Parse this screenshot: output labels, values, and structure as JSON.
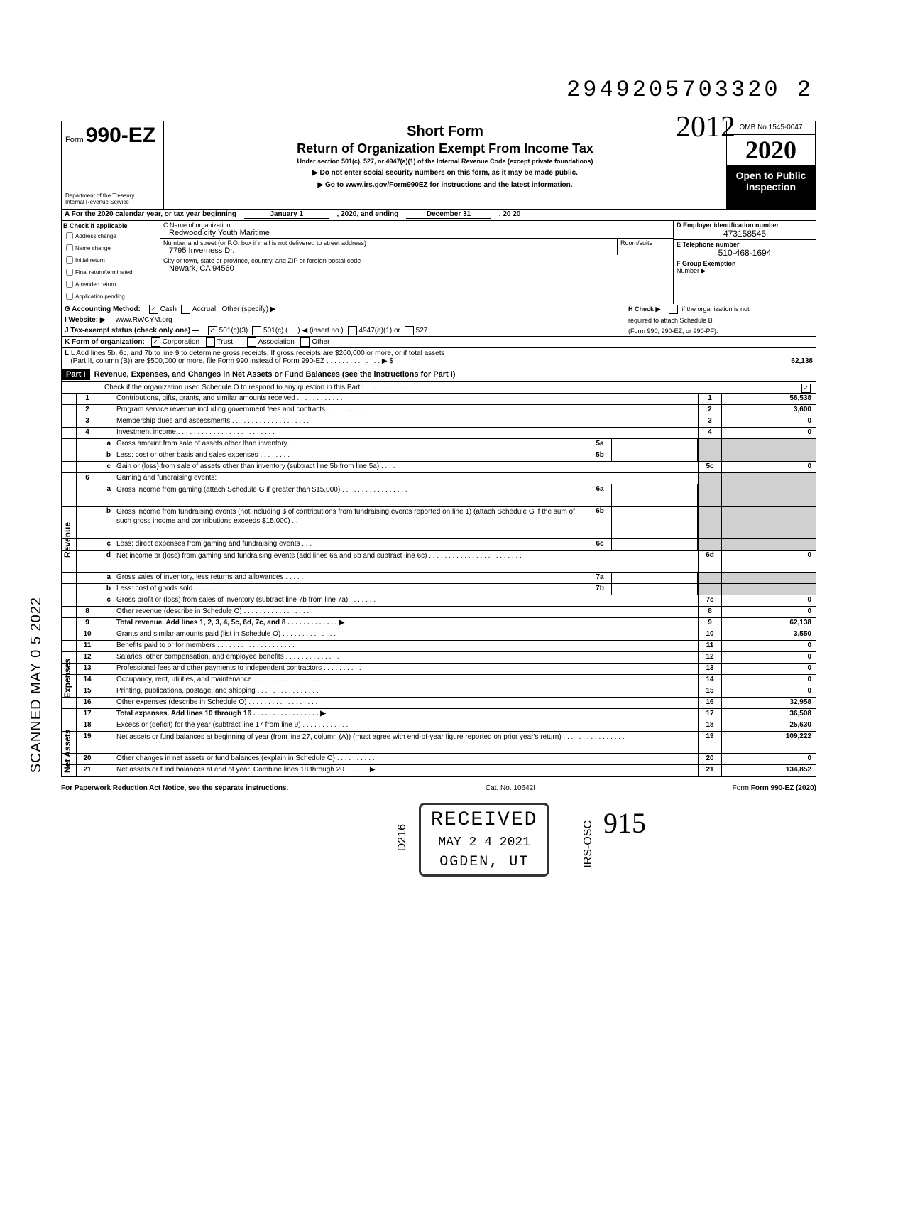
{
  "topNumber": "2949205703320 2",
  "handwrittenYear": "2012",
  "formNo": "990-EZ",
  "shortForm": "Short Form",
  "returnTitle": "Return of Organization Exempt From Income Tax",
  "subtitle": "Under section 501(c), 527, or 4947(a)(1) of the Internal Revenue Code (except private foundations)",
  "instr1": "▶ Do not enter social security numbers on this form, as it may be made public.",
  "instr2": "▶ Go to www.irs.gov/Form990EZ for instructions and the latest information.",
  "dept1": "Department of the Treasury",
  "dept2": "Internal Revenue Service",
  "omb": "OMB No 1545-0047",
  "taxYear": "2020",
  "openPublic1": "Open to Public",
  "openPublic2": "Inspection",
  "calYearLine": "A For the 2020 calendar year, or tax year beginning",
  "calYearMid": "January 1",
  "calYearEnd": ", 2020, and ending",
  "calYearRight": "December 31",
  "calYearSuffix": ", 20   20",
  "bLabel": "B Check if applicable",
  "bChecks": [
    "Address change",
    "Name change",
    "Initial return",
    "Final return/terminated",
    "Amended return",
    "Application pending"
  ],
  "cLabel": "C Name of organization",
  "orgName": "Redwood city Youth Maritime",
  "streetLabel": "Number and street (or P.O. box if mail is not delivered to street address)",
  "roomLabel": "Room/suite",
  "street": "7795 Inverness Dr.",
  "cityLabel": "City or town, state or province, country, and ZIP or foreign postal code",
  "city": "Newark, CA 94560",
  "dLabel": "D Employer identification number",
  "ein": "473158545",
  "eLabel": "E Telephone number",
  "phone": "510-468-1694",
  "fLabel": "F Group Exemption",
  "fLabel2": "Number ▶",
  "gLine": "G Accounting Method:",
  "gCash": "Cash",
  "gAccrual": "Accrual",
  "gOther": "Other (specify) ▶",
  "hLine1": "H Check ▶",
  "hLine2": "if the organization is not",
  "hLine3": "required to attach Schedule B",
  "hLine4": "(Form 990, 990-EZ, or 990-PF).",
  "iLine": "I Website: ▶",
  "website": "www.RWCYM.org",
  "jLine": "J Tax-exempt status (check only one) —",
  "j501c3": "501(c)(3)",
  "j501c": "501(c) (",
  "jInsert": ") ◀ (insert no )",
  "j4947": "4947(a)(1) or",
  "j527": "527",
  "kLine": "K Form of organization:",
  "kCorp": "Corporation",
  "kTrust": "Trust",
  "kAssoc": "Association",
  "kOther": "Other",
  "lLine1": "L Add lines 5b, 6c, and 7b to line 9 to determine gross receipts. If gross receipts are $200,000 or more, or if total assets",
  "lLine2": "(Part II, column (B)) are $500,000 or more, file Form 990 instead of Form 990-EZ . . . . . . . . . . . . . . ▶ $",
  "lAmount": "62,138",
  "partI": "Part I",
  "partITitle": "Revenue, Expenses, and Changes in Net Assets or Fund Balances (see the instructions for Part I)",
  "partISub": "Check if the organization used Schedule O to respond to any question in this Part I . . . . . . . . . . .",
  "rows": {
    "1": {
      "desc": "Contributions, gifts, grants, and similar amounts received . . . . . . . . . . . .",
      "val": "58,538"
    },
    "2": {
      "desc": "Program service revenue including government fees and contracts . . . . . . . . . . .",
      "val": "3,600"
    },
    "3": {
      "desc": "Membership dues and assessments . . . . . . . . . . . . . . . . . . . .",
      "val": "0"
    },
    "4": {
      "desc": "Investment income . . . . . . . . . . . . . . . . . . . . . . . . .",
      "val": "0"
    },
    "5a": {
      "desc": "Gross amount from sale of assets other than inventory . . . ."
    },
    "5b": {
      "desc": "Less: cost or other basis and sales expenses . . . . . . . ."
    },
    "5c": {
      "desc": "Gain or (loss) from sale of assets other than inventory (subtract line 5b from line 5a) . . . .",
      "val": "0"
    },
    "6": {
      "desc": "Gaming and fundraising events:"
    },
    "6a": {
      "desc": "Gross income from gaming (attach Schedule G if greater than $15,000) . . . . . . . . . . . . . . . . ."
    },
    "6b": {
      "desc": "Gross income from fundraising events (not including $         of contributions from fundraising events reported on line 1) (attach Schedule G if the sum of such gross income and contributions exceeds $15,000) . ."
    },
    "6c": {
      "desc": "Less: direct expenses from gaming and fundraising events . . ."
    },
    "6d": {
      "desc": "Net income or (loss) from gaming and fundraising events (add lines 6a and 6b and subtract line 6c) . . . . . . . . . . . . . . . . . . . . . . . . ",
      "val": "0"
    },
    "7a": {
      "desc": "Gross sales of inventory, less returns and allowances . . . . ."
    },
    "7b": {
      "desc": "Less: cost of goods sold . . . . . . . . . . . . . ."
    },
    "7c": {
      "desc": "Gross profit or (loss) from sales of inventory (subtract line 7b from line 7a) . . . . . . .",
      "val": "0"
    },
    "8": {
      "desc": "Other revenue (describe in Schedule O) . . . . . . . . . . . . . . . . . .",
      "val": "0"
    },
    "9": {
      "desc": "Total revenue. Add lines 1, 2, 3, 4, 5c, 6d, 7c, and 8 . . . . . . . . . . . . . ▶",
      "val": "62,138"
    },
    "10": {
      "desc": "Grants and similar amounts paid (list in Schedule O) . . . . . . . . . . . . . .",
      "val": "3,550"
    },
    "11": {
      "desc": "Benefits paid to or for members . . . . . . . . . . . . . . . . . . . .",
      "val": "0"
    },
    "12": {
      "desc": "Salaries, other compensation, and employee benefits . . . . . . . . . . . . . .",
      "val": "0"
    },
    "13": {
      "desc": "Professional fees and other payments to independent contractors . . . . . . . . . .",
      "val": "0"
    },
    "14": {
      "desc": "Occupancy, rent, utilities, and maintenance . . . . . . . . . . . . . . . . .",
      "val": "0"
    },
    "15": {
      "desc": "Printing, publications, postage, and shipping . . . . . . . . . . . . . . . .",
      "val": "0"
    },
    "16": {
      "desc": "Other expenses (describe in Schedule O) . . . . . . . . . . . . . . . . . .",
      "val": "32,958"
    },
    "17": {
      "desc": "Total expenses. Add lines 10 through 16 . . . . . . . . . . . . . . . . . ▶",
      "val": "36,508"
    },
    "18": {
      "desc": "Excess or (deficit) for the year (subtract line 17 from line 9) . . . . . . . . . . . .",
      "val": "25,630"
    },
    "19": {
      "desc": "Net assets or fund balances at beginning of year (from line 27, column (A)) (must agree with end-of-year figure reported on prior year's return) . . . . . . . . . . . . . . . .",
      "val": "109,222"
    },
    "20": {
      "desc": "Other changes in net assets or fund balances (explain in Schedule O) . . . . . . . . . .",
      "val": "0"
    },
    "21": {
      "desc": "Net assets or fund balances at end of year. Combine lines 18 through 20 . . . . . . ▶",
      "val": "134,852"
    }
  },
  "sideLabels": {
    "revenue": "Revenue",
    "expenses": "Expenses",
    "netassets": "Net Assets"
  },
  "footer": {
    "left": "For Paperwork Reduction Act Notice, see the separate instructions.",
    "mid": "Cat. No. 10642I",
    "right": "Form 990-EZ (2020)"
  },
  "stamp": {
    "received": "RECEIVED",
    "date": "MAY 2 4 2021",
    "ogden": "OGDEN, UT"
  },
  "scanned": "SCANNED MAY 0 5 2022",
  "d216": "D216",
  "irsosc": "IRS-OSC",
  "hw915": "915"
}
